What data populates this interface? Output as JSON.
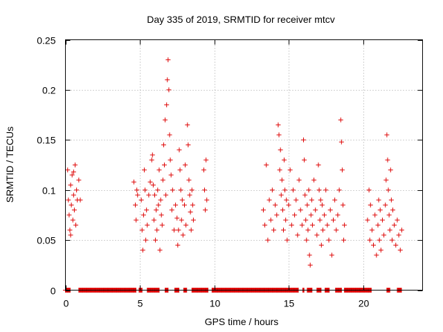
{
  "chart_data": {
    "type": "scatter",
    "title": "Day 335 of 2019, SRMTID for receiver mtcv",
    "xlabel": "GPS time / hours",
    "ylabel": "SRMTID / TECUs",
    "xlim": [
      0,
      24
    ],
    "ylim": [
      0,
      0.25
    ],
    "x_ticks": [
      0,
      5,
      10,
      15,
      20
    ],
    "x_tick_labels": [
      "0",
      "5",
      "10",
      "15",
      "20"
    ],
    "y_ticks": [
      0,
      0.05,
      0.1,
      0.15,
      0.2,
      0.25
    ],
    "y_tick_labels": [
      "0",
      "0.05",
      "0.1",
      "0.15",
      "0.2",
      "0.25"
    ],
    "grid": true,
    "marker": "+",
    "marker_color": "#dd0000",
    "series": [
      {
        "name": "SRMTID",
        "points": [
          [
            0.15,
            0.12
          ],
          [
            0.2,
            0.09
          ],
          [
            0.25,
            0.075
          ],
          [
            0.3,
            0.06
          ],
          [
            0.35,
            0.105
          ],
          [
            0.4,
            0.085
          ],
          [
            0.45,
            0.115
          ],
          [
            0.5,
            0.07
          ],
          [
            0.55,
            0.095
          ],
          [
            0.6,
            0.08
          ],
          [
            0.65,
            0.125
          ],
          [
            0.7,
            0.065
          ],
          [
            0.75,
            0.1
          ],
          [
            0.8,
            0.09
          ],
          [
            0.9,
            0.11
          ],
          [
            1.0,
            0.09
          ],
          [
            0.35,
            0.055
          ],
          [
            0.55,
            0.118
          ],
          [
            4.6,
            0.108
          ],
          [
            4.7,
            0.085
          ],
          [
            4.75,
            0.07
          ],
          [
            4.8,
            0.1
          ],
          [
            4.85,
            0.095
          ],
          [
            5.1,
            0.09
          ],
          [
            5.15,
            0.06
          ],
          [
            5.2,
            0.04
          ],
          [
            5.25,
            0.075
          ],
          [
            5.3,
            0.12
          ],
          [
            5.35,
            0.1
          ],
          [
            5.4,
            0.05
          ],
          [
            5.45,
            0.08
          ],
          [
            5.5,
            0.065
          ],
          [
            5.6,
            0.095
          ],
          [
            5.7,
            0.108
          ],
          [
            5.8,
            0.13
          ],
          [
            5.85,
            0.135
          ],
          [
            5.9,
            0.105
          ],
          [
            5.95,
            0.07
          ],
          [
            6.0,
            0.095
          ],
          [
            6.05,
            0.05
          ],
          [
            6.1,
            0.08
          ],
          [
            6.15,
            0.06
          ],
          [
            6.2,
            0.1
          ],
          [
            6.25,
            0.085
          ],
          [
            6.3,
            0.12
          ],
          [
            6.35,
            0.04
          ],
          [
            6.4,
            0.09
          ],
          [
            6.45,
            0.075
          ],
          [
            6.5,
            0.065
          ],
          [
            6.55,
            0.11
          ],
          [
            6.6,
            0.145
          ],
          [
            6.65,
            0.125
          ],
          [
            6.7,
            0.17
          ],
          [
            6.75,
            0.095
          ],
          [
            6.8,
            0.185
          ],
          [
            6.85,
            0.21
          ],
          [
            6.9,
            0.23
          ],
          [
            6.95,
            0.2
          ],
          [
            7.0,
            0.155
          ],
          [
            7.05,
            0.13
          ],
          [
            7.1,
            0.115
          ],
          [
            7.15,
            0.08
          ],
          [
            7.2,
            0.1
          ],
          [
            7.3,
            0.06
          ],
          [
            7.4,
            0.085
          ],
          [
            7.5,
            0.072
          ],
          [
            7.55,
            0.045
          ],
          [
            7.6,
            0.06
          ],
          [
            7.65,
            0.14
          ],
          [
            7.7,
            0.12
          ],
          [
            7.75,
            0.1
          ],
          [
            7.8,
            0.07
          ],
          [
            7.85,
            0.09
          ],
          [
            7.9,
            0.055
          ],
          [
            8.0,
            0.085
          ],
          [
            8.05,
            0.125
          ],
          [
            8.1,
            0.065
          ],
          [
            8.2,
            0.165
          ],
          [
            8.25,
            0.145
          ],
          [
            8.3,
            0.11
          ],
          [
            8.35,
            0.095
          ],
          [
            8.4,
            0.078
          ],
          [
            8.45,
            0.06
          ],
          [
            8.5,
            0.1
          ],
          [
            8.55,
            0.085
          ],
          [
            8.6,
            0.07
          ],
          [
            9.3,
            0.12
          ],
          [
            9.35,
            0.1
          ],
          [
            9.4,
            0.08
          ],
          [
            9.45,
            0.13
          ],
          [
            9.5,
            0.09
          ],
          [
            13.3,
            0.08
          ],
          [
            13.4,
            0.065
          ],
          [
            13.5,
            0.125
          ],
          [
            13.6,
            0.05
          ],
          [
            13.7,
            0.09
          ],
          [
            13.8,
            0.07
          ],
          [
            13.9,
            0.1
          ],
          [
            14.0,
            0.06
          ],
          [
            14.1,
            0.085
          ],
          [
            14.2,
            0.075
          ],
          [
            14.3,
            0.165
          ],
          [
            14.35,
            0.155
          ],
          [
            14.4,
            0.12
          ],
          [
            14.45,
            0.14
          ],
          [
            14.5,
            0.095
          ],
          [
            14.55,
            0.11
          ],
          [
            14.6,
            0.08
          ],
          [
            14.65,
            0.06
          ],
          [
            14.7,
            0.13
          ],
          [
            14.75,
            0.1
          ],
          [
            14.8,
            0.07
          ],
          [
            14.85,
            0.09
          ],
          [
            14.9,
            0.05
          ],
          [
            15.0,
            0.085
          ],
          [
            15.1,
            0.12
          ],
          [
            15.2,
            0.065
          ],
          [
            15.3,
            0.1
          ],
          [
            15.4,
            0.075
          ],
          [
            15.5,
            0.09
          ],
          [
            15.6,
            0.055
          ],
          [
            15.7,
            0.11
          ],
          [
            15.8,
            0.08
          ],
          [
            15.9,
            0.065
          ],
          [
            16.0,
            0.15
          ],
          [
            16.05,
            0.13
          ],
          [
            16.1,
            0.095
          ],
          [
            16.15,
            0.07
          ],
          [
            16.2,
            0.05
          ],
          [
            16.25,
            0.085
          ],
          [
            16.3,
            0.06
          ],
          [
            16.35,
            0.1
          ],
          [
            16.4,
            0.035
          ],
          [
            16.45,
            0.025
          ],
          [
            16.5,
            0.075
          ],
          [
            16.55,
            0.09
          ],
          [
            16.6,
            0.065
          ],
          [
            16.7,
            0.11
          ],
          [
            16.8,
            0.08
          ],
          [
            16.9,
            0.055
          ],
          [
            17.0,
            0.125
          ],
          [
            17.05,
            0.1
          ],
          [
            17.1,
            0.07
          ],
          [
            17.15,
            0.09
          ],
          [
            17.2,
            0.045
          ],
          [
            17.25,
            0.085
          ],
          [
            17.3,
            0.06
          ],
          [
            17.4,
            0.075
          ],
          [
            17.5,
            0.1
          ],
          [
            17.6,
            0.065
          ],
          [
            17.7,
            0.05
          ],
          [
            17.8,
            0.08
          ],
          [
            17.9,
            0.035
          ],
          [
            18.0,
            0.07
          ],
          [
            18.1,
            0.09
          ],
          [
            18.2,
            0.06
          ],
          [
            18.3,
            0.075
          ],
          [
            18.4,
            0.1
          ],
          [
            18.5,
            0.17
          ],
          [
            18.55,
            0.148
          ],
          [
            18.6,
            0.12
          ],
          [
            18.65,
            0.085
          ],
          [
            18.7,
            0.05
          ],
          [
            18.75,
            0.065
          ],
          [
            20.3,
            0.07
          ],
          [
            20.4,
            0.1
          ],
          [
            20.45,
            0.05
          ],
          [
            20.5,
            0.085
          ],
          [
            20.6,
            0.06
          ],
          [
            20.7,
            0.045
          ],
          [
            20.8,
            0.075
          ],
          [
            20.9,
            0.035
          ],
          [
            21.0,
            0.065
          ],
          [
            21.05,
            0.09
          ],
          [
            21.1,
            0.05
          ],
          [
            21.15,
            0.08
          ],
          [
            21.2,
            0.04
          ],
          [
            21.3,
            0.07
          ],
          [
            21.4,
            0.055
          ],
          [
            21.5,
            0.085
          ],
          [
            21.55,
            0.11
          ],
          [
            21.6,
            0.155
          ],
          [
            21.65,
            0.13
          ],
          [
            21.7,
            0.1
          ],
          [
            21.75,
            0.075
          ],
          [
            21.8,
            0.06
          ],
          [
            21.85,
            0.12
          ],
          [
            21.9,
            0.09
          ],
          [
            21.95,
            0.05
          ],
          [
            22.0,
            0.08
          ],
          [
            22.1,
            0.065
          ],
          [
            22.2,
            0.045
          ],
          [
            22.3,
            0.07
          ],
          [
            22.4,
            0.055
          ],
          [
            22.5,
            0.04
          ],
          [
            22.6,
            0.06
          ]
        ],
        "zero_ranges": [
          [
            0,
            0.35
          ],
          [
            0.9,
            4.75
          ],
          [
            4.95,
            5.15
          ],
          [
            5.5,
            6.3
          ],
          [
            6.7,
            6.9
          ],
          [
            7.35,
            7.65
          ],
          [
            7.95,
            8.15
          ],
          [
            8.5,
            9.6
          ],
          [
            9.85,
            15.65
          ],
          [
            15.95,
            16.05
          ],
          [
            16.25,
            16.6
          ],
          [
            16.9,
            17.2
          ],
          [
            17.45,
            17.75
          ],
          [
            18.15,
            18.55
          ],
          [
            18.75,
            20.55
          ],
          [
            21.6,
            21.8
          ],
          [
            22.3,
            22.6
          ]
        ]
      }
    ]
  }
}
